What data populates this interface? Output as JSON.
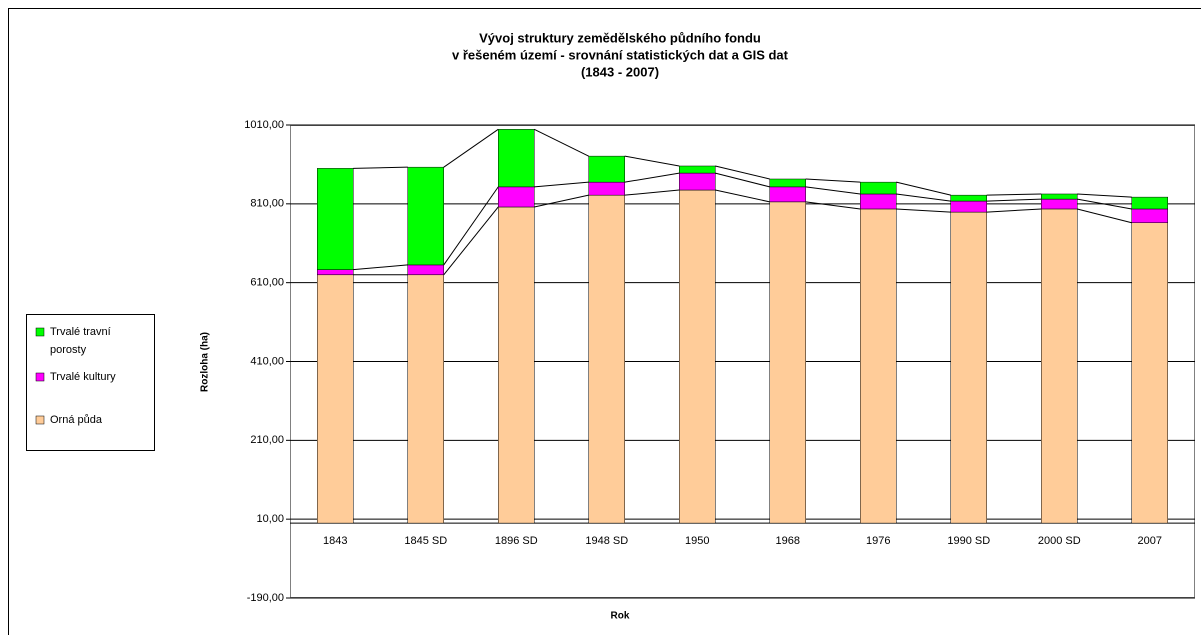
{
  "chart_data": {
    "type": "stacked_bar",
    "title": [
      "Vývoj struktury zemědělského půdního fondu",
      "v řešeném území - srovnání statistických dat a GIS dat",
      "(1843 -  2007)"
    ],
    "x_label": "Rok",
    "y_label": "Rozloha (ha)",
    "categories": [
      "1843",
      "1845 SD",
      "1896 SD",
      "1948 SD",
      "1950",
      "1968",
      "1976",
      "1990 SD",
      "2000 SD",
      "2007"
    ],
    "series": [
      {
        "name": "Orná půda",
        "color": "#FFCC99",
        "values": [
          630,
          630,
          802,
          832,
          845,
          815,
          797,
          789,
          797,
          762
        ]
      },
      {
        "name": "Trvalé kultury",
        "color": "#FF00FF",
        "values": [
          13,
          25,
          51,
          33,
          43,
          38,
          38,
          28,
          25,
          35
        ]
      },
      {
        "name": "Trvalé travní porosty",
        "color": "#00FF00",
        "values": [
          257,
          248,
          146,
          66,
          18,
          20,
          30,
          15,
          13,
          30
        ]
      }
    ],
    "ylim": [
      -190,
      1010
    ],
    "yticks": [
      {
        "value": -190,
        "label": "-190,00"
      },
      {
        "value": 10,
        "label": "10,00"
      },
      {
        "value": 210,
        "label": "210,00"
      },
      {
        "value": 410,
        "label": "410,00"
      },
      {
        "value": 610,
        "label": "610,00"
      },
      {
        "value": 810,
        "label": "810,00"
      },
      {
        "value": 1010,
        "label": "1010,00"
      }
    ],
    "grid": true,
    "legend": "left"
  }
}
